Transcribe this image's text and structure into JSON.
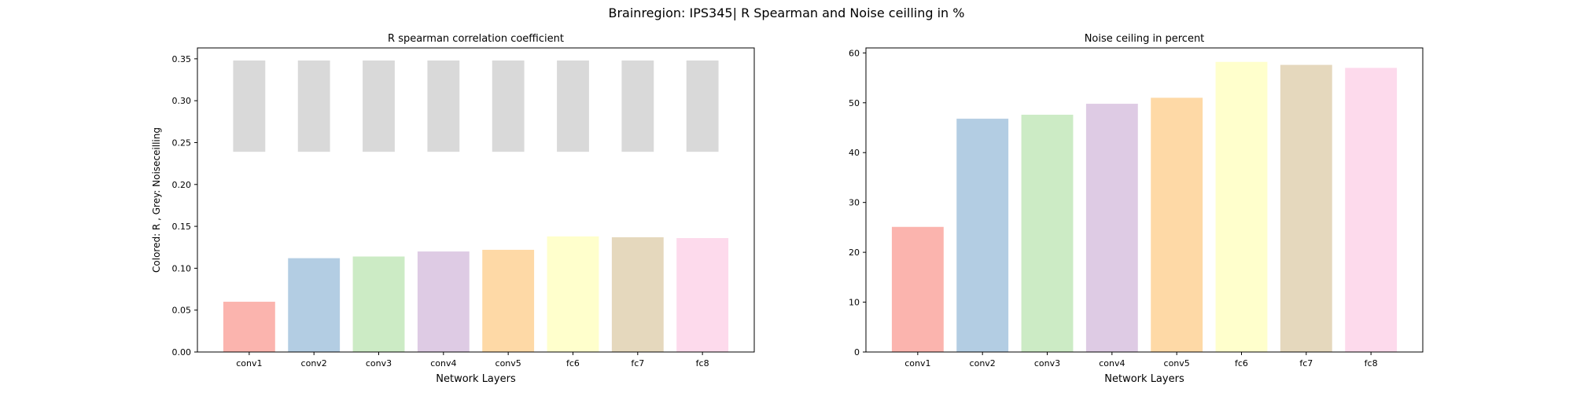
{
  "figure": {
    "suptitle": "Brainregion: IPS345| R Spearman and Noise ceilling in %"
  },
  "colors": {
    "conv1": "#fbb4ae",
    "conv2": "#b3cde3",
    "conv3": "#ccebc5",
    "conv4": "#decbe4",
    "conv5": "#fed9a6",
    "fc6": "#ffffcc",
    "fc7": "#e5d8bd",
    "fc8": "#fddaec",
    "noise_ceiling_grey": "#d9d9d9"
  },
  "chart_data": [
    {
      "type": "bar",
      "title": "R spearman correlation coefficient",
      "xlabel": "Network Layers",
      "ylabel": "Colored: R , Grey: Noiseceilling",
      "categories": [
        "conv1",
        "conv2",
        "conv3",
        "conv4",
        "conv5",
        "fc6",
        "fc7",
        "fc8"
      ],
      "ylim": [
        0,
        0.363
      ],
      "yticks": [
        "0.00",
        "0.05",
        "0.10",
        "0.15",
        "0.20",
        "0.25",
        "0.30",
        "0.35"
      ],
      "grid": false,
      "series": [
        {
          "values": [
            0.06,
            0.112,
            0.114,
            0.12,
            0.122,
            0.138,
            0.137,
            0.136
          ]
        },
        {
          "type": "floating-bar",
          "lower": [
            0.239,
            0.239,
            0.239,
            0.239,
            0.239,
            0.239,
            0.239,
            0.239
          ],
          "upper": [
            0.348,
            0.348,
            0.348,
            0.348,
            0.348,
            0.348,
            0.348,
            0.348
          ]
        }
      ]
    },
    {
      "type": "bar",
      "title": "Noise ceiling in percent",
      "xlabel": "Network Layers",
      "ylabel": "",
      "categories": [
        "conv1",
        "conv2",
        "conv3",
        "conv4",
        "conv5",
        "fc6",
        "fc7",
        "fc8"
      ],
      "ylim": [
        0,
        61
      ],
      "yticks": [
        "0",
        "10",
        "20",
        "30",
        "40",
        "50",
        "60"
      ],
      "grid": false,
      "series": [
        {
          "values": [
            25.1,
            46.8,
            47.6,
            49.8,
            51.0,
            58.2,
            57.6,
            57.0
          ]
        }
      ]
    }
  ]
}
